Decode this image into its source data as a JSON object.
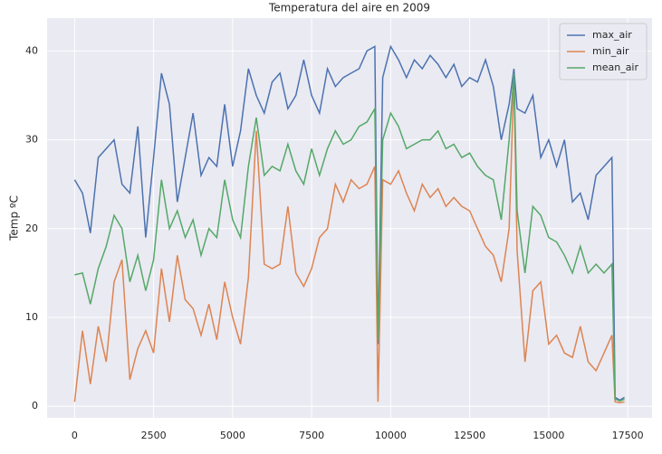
{
  "chart_data": {
    "type": "line",
    "title": "Temperatura del aire en 2009",
    "ylabel": "Temp ºC",
    "x": [
      0,
      250,
      500,
      750,
      1000,
      1250,
      1500,
      1750,
      2000,
      2250,
      2500,
      2750,
      3000,
      3250,
      3500,
      3750,
      4000,
      4250,
      4500,
      4750,
      5000,
      5250,
      5500,
      5750,
      6000,
      6250,
      6500,
      6750,
      7000,
      7250,
      7500,
      7750,
      8000,
      8250,
      8500,
      8750,
      9000,
      9250,
      9500,
      9600,
      9750,
      10000,
      10250,
      10500,
      10750,
      11000,
      11250,
      11500,
      11750,
      12000,
      12250,
      12500,
      12750,
      13000,
      13250,
      13500,
      13750,
      13900,
      14000,
      14250,
      14500,
      14750,
      15000,
      15250,
      15500,
      15750,
      16000,
      16250,
      16500,
      16750,
      17000,
      17100,
      17250,
      17400
    ],
    "series": [
      {
        "name": "max_air",
        "color": "#4c72b0",
        "values": [
          25.5,
          24,
          19.5,
          28,
          29,
          30,
          25,
          24,
          31.5,
          19,
          28,
          37.5,
          34,
          23,
          28,
          33,
          26,
          28,
          27,
          34,
          27,
          31,
          38,
          35,
          33,
          36.5,
          37.5,
          33.5,
          35,
          39,
          35,
          33,
          38,
          36,
          37,
          37.5,
          38,
          40,
          40.5,
          7,
          37,
          40.5,
          39,
          37,
          39,
          38,
          39.5,
          38.5,
          37,
          38.5,
          36,
          37,
          36.5,
          39,
          36,
          30,
          34,
          38,
          33.5,
          33,
          35,
          28,
          30,
          27,
          30,
          23,
          24,
          21,
          26,
          27,
          28,
          1,
          0.7,
          1
        ]
      },
      {
        "name": "min_air",
        "color": "#dd8452",
        "values": [
          0.5,
          8.5,
          2.5,
          9,
          5,
          14,
          16.5,
          3,
          6.5,
          8.5,
          6,
          15.5,
          9.5,
          17,
          12,
          11,
          8,
          11.5,
          7.5,
          14,
          10,
          7,
          14.5,
          31,
          16,
          15.5,
          16,
          22.5,
          15,
          13.5,
          15.5,
          19,
          20,
          25,
          23,
          25.5,
          24.5,
          25,
          27,
          0.5,
          25.5,
          25,
          26.5,
          24,
          22,
          25,
          23.5,
          24.5,
          22.5,
          23.5,
          22.5,
          22,
          20,
          18,
          17,
          14,
          20,
          37,
          17.5,
          5,
          13,
          14,
          7,
          8,
          6,
          5.5,
          9,
          5,
          4,
          6,
          8,
          0.5,
          0.4,
          0.5
        ]
      },
      {
        "name": "mean_air",
        "color": "#55a868",
        "values": [
          14.8,
          15,
          11.5,
          15.5,
          18,
          21.5,
          20,
          14,
          17,
          13,
          16.5,
          25.5,
          20,
          22,
          19,
          21,
          17,
          20,
          19,
          25.5,
          21,
          19,
          27,
          32.5,
          26,
          27,
          26.5,
          29.5,
          26.5,
          25,
          29,
          26,
          29,
          31,
          29.5,
          30,
          31.5,
          32,
          33.5,
          7.5,
          30,
          33,
          31.5,
          29,
          29.5,
          30,
          30,
          31,
          29,
          29.5,
          28,
          28.5,
          27,
          26,
          25.5,
          21,
          30,
          37.5,
          22,
          15,
          22.5,
          21.5,
          19,
          18.5,
          17,
          15,
          18,
          15,
          16,
          15,
          16,
          0.8,
          0.6,
          0.8
        ]
      }
    ],
    "xlim": [
      -870,
      18270
    ],
    "ylim": [
      -1.3,
      43.7
    ],
    "xticks": [
      0,
      2500,
      5000,
      7500,
      10000,
      12500,
      15000,
      17500
    ],
    "yticks": [
      0,
      10,
      20,
      30,
      40
    ],
    "grid": true,
    "legend": "upper-right"
  }
}
